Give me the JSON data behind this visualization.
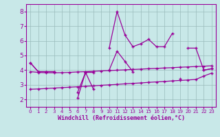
{
  "x": [
    0,
    1,
    2,
    3,
    4,
    5,
    6,
    7,
    8,
    9,
    10,
    11,
    12,
    13,
    14,
    15,
    16,
    17,
    18,
    19,
    20,
    21,
    22,
    23
  ],
  "line1": [
    4.5,
    3.9,
    3.9,
    3.9,
    null,
    null,
    2.5,
    3.85,
    3.85,
    null,
    5.5,
    8.0,
    6.4,
    5.6,
    5.8,
    6.1,
    5.6,
    5.6,
    6.5,
    null,
    5.5,
    5.5,
    4.0,
    4.1
  ],
  "line2": [
    4.5,
    3.9,
    3.9,
    3.9,
    null,
    null,
    2.1,
    3.85,
    2.7,
    null,
    4.0,
    5.3,
    4.6,
    3.9,
    null,
    null,
    null,
    null,
    null,
    3.4,
    null,
    null,
    4.0,
    4.1
  ],
  "line3": [
    3.9,
    3.85,
    3.82,
    3.82,
    3.83,
    3.85,
    3.88,
    3.9,
    3.92,
    3.95,
    3.97,
    4.0,
    4.02,
    4.05,
    4.07,
    4.1,
    4.12,
    4.15,
    4.17,
    4.2,
    4.22,
    4.25,
    4.27,
    4.3
  ],
  "line4": [
    2.7,
    2.72,
    2.75,
    2.78,
    2.81,
    2.84,
    2.87,
    2.9,
    2.93,
    2.97,
    3.0,
    3.03,
    3.07,
    3.1,
    3.13,
    3.17,
    3.2,
    3.23,
    3.27,
    3.3,
    3.33,
    3.37,
    3.6,
    3.8
  ],
  "line_color": "#990099",
  "bg_color": "#c8e8e8",
  "grid_color": "#99bbbb",
  "xlabel": "Windchill (Refroidissement éolien,°C)",
  "xlim": [
    -0.5,
    23.5
  ],
  "ylim": [
    1.5,
    8.5
  ],
  "yticks": [
    2,
    3,
    4,
    5,
    6,
    7,
    8
  ],
  "xticks": [
    0,
    1,
    2,
    3,
    4,
    5,
    6,
    7,
    8,
    9,
    10,
    11,
    12,
    13,
    14,
    15,
    16,
    17,
    18,
    19,
    20,
    21,
    22,
    23
  ]
}
